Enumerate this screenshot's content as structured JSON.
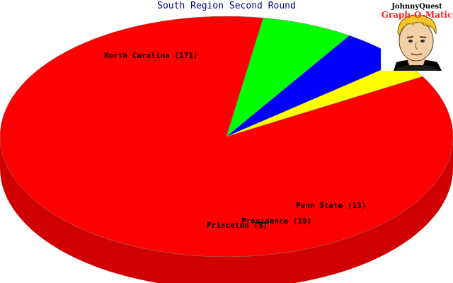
{
  "chart_data": {
    "type": "pie",
    "title": "South Region Second Round",
    "labels": [
      "North Carolina (171)",
      "Penn State (13)",
      "Providence (10)",
      "Princeton (5)"
    ],
    "slices": [
      {
        "name": "North Carolina",
        "value": 171,
        "color": "#ff0000"
      },
      {
        "name": "Penn State",
        "value": 13,
        "color": "#00ff00"
      },
      {
        "name": "Providence",
        "value": 10,
        "color": "#0000ff"
      },
      {
        "name": "Princeton",
        "value": 5,
        "color": "#ffff00"
      }
    ],
    "style": "3d"
  },
  "logo": {
    "line1": "JohnnyQuest",
    "line2": "Graph-O-Matic",
    "icon": "cartoon-boy-face-icon"
  }
}
